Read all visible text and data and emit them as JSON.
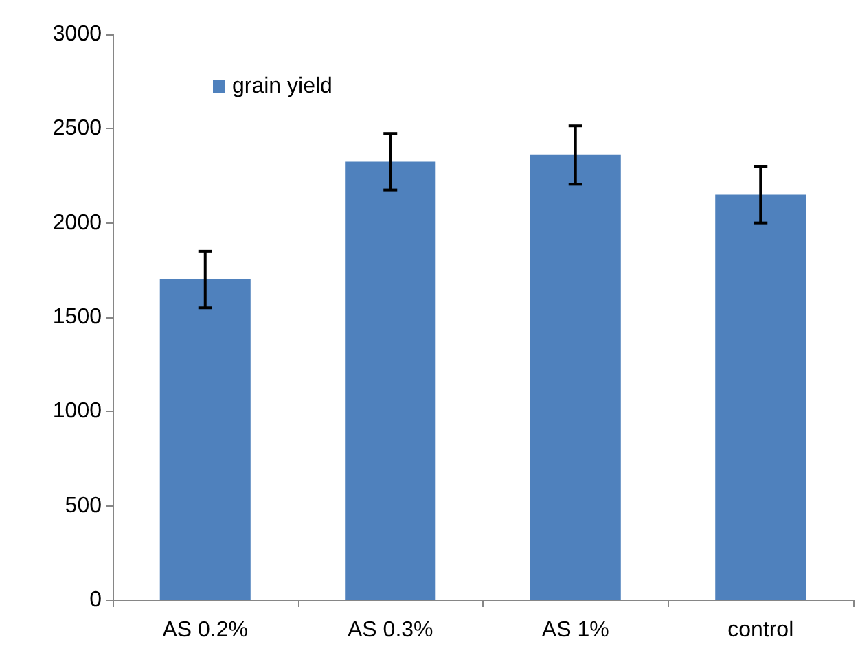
{
  "chart_data": {
    "type": "bar",
    "categories": [
      "AS 0.2%",
      "AS 0.3%",
      "AS 1%",
      "control"
    ],
    "series": [
      {
        "name": "grain yield",
        "color": "#4f81bd",
        "values": [
          1700,
          2325,
          2360,
          2150
        ],
        "errors": [
          150,
          150,
          155,
          150
        ]
      }
    ],
    "ylim": [
      0,
      3000
    ],
    "yticks": [
      0,
      500,
      1000,
      1500,
      2000,
      2500,
      3000
    ],
    "grid": false,
    "legend": "top left"
  }
}
